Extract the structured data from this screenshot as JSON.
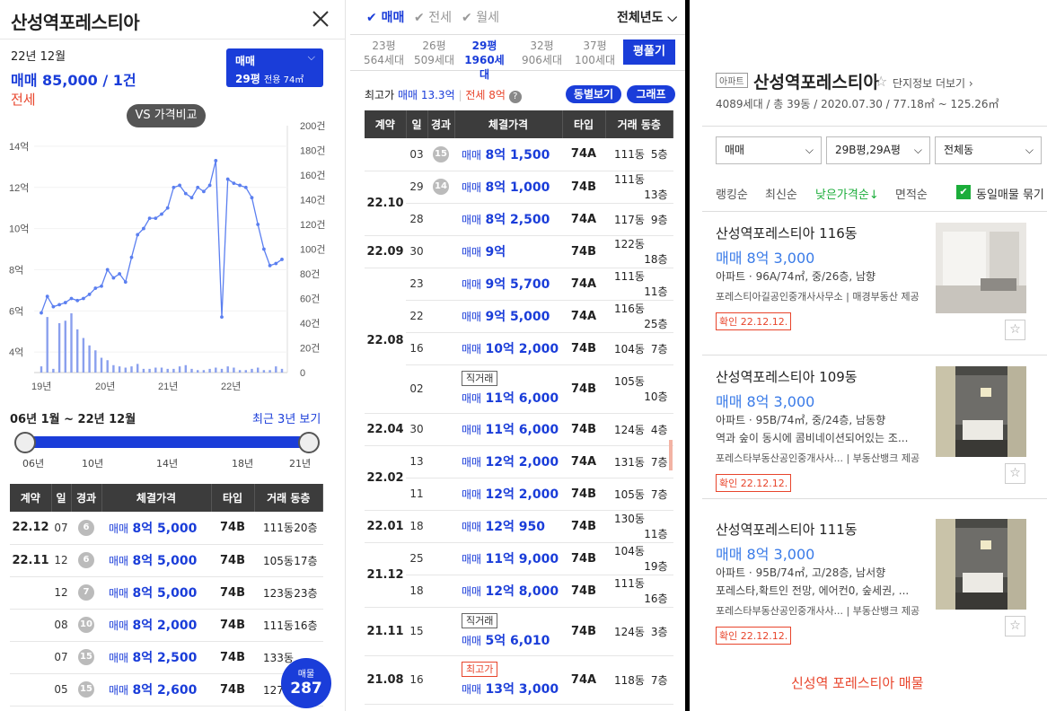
{
  "left": {
    "title": "산성역포레스티아",
    "summary": {
      "date": "22년 12월",
      "trade": "매매 85,000 / 1건",
      "jeonse": "전세"
    },
    "selector": {
      "type": "매매",
      "size": "29평",
      "area": "전용 74㎡"
    },
    "vs_button": "VS 가격비교",
    "period": "06년 1월 ~ 22년 12월",
    "recent_btn": "최근 3년 보기",
    "slider_years": [
      "06년",
      "10년",
      "14년",
      "18년",
      "21년"
    ],
    "headers": [
      "계약",
      "일",
      "경과",
      "체결가격",
      "타입",
      "거래 동층"
    ],
    "rows": [
      {
        "month": "22.12",
        "day": "07",
        "days": "6",
        "price": "매매 8억 5,000",
        "type": "74B",
        "dong": "111동",
        "floor": "20층"
      },
      {
        "month": "22.11",
        "day": "12",
        "days": "6",
        "price": "매매 8억 5,000",
        "type": "74B",
        "dong": "105동",
        "floor": "17층"
      },
      {
        "month": "",
        "day": "12",
        "days": "7",
        "price": "매매 8억 5,000",
        "type": "74B",
        "dong": "123동",
        "floor": "23층"
      },
      {
        "month": "",
        "day": "08",
        "days": "10",
        "price": "매매 8억 2,000",
        "type": "74B",
        "dong": "111동",
        "floor": "16층"
      },
      {
        "month": "",
        "day": "07",
        "days": "15",
        "price": "매매 8억 2,500",
        "type": "74B",
        "dong": "133동",
        "floor": ""
      },
      {
        "month": "",
        "day": "05",
        "days": "15",
        "price": "매매 8억 2,600",
        "type": "74B",
        "dong": "127동",
        "floor": ""
      }
    ],
    "fab": {
      "label": "매물",
      "count": "287"
    }
  },
  "chart_data": {
    "type": "line",
    "x_ticks": [
      "19년",
      "20년",
      "21년",
      "22년"
    ],
    "y_left_ticks": [
      "14억",
      "12억",
      "10억",
      "8억",
      "6억",
      "4억"
    ],
    "y_right_ticks": [
      "200건",
      "180건",
      "160건",
      "140건",
      "120건",
      "100건",
      "80건",
      "60건",
      "40건",
      "20건",
      "0"
    ],
    "ylim_price": [
      3,
      15
    ],
    "ylim_volume": [
      0,
      200
    ],
    "series": [
      {
        "values": [
          5.9,
          6.7,
          6.2,
          6.3,
          6.4,
          6.6,
          6.5,
          6.6,
          6.8,
          7.1,
          7.2,
          8.0,
          7.6,
          7.8,
          7.4,
          8.6,
          9.7,
          10.0,
          10.5,
          10.5,
          10.7,
          11.0,
          12.0,
          12.1,
          11.7,
          11.5,
          12.0,
          11.8,
          12.1,
          13.3,
          5.7,
          12.4,
          12.2,
          12.1,
          12.0,
          11.5,
          10.2,
          9.0,
          8.2,
          8.3,
          8.5
        ]
      }
    ],
    "volume": [
      5,
      45,
      3,
      40,
      42,
      48,
      35,
      28,
      22,
      18,
      12,
      10,
      6,
      5,
      4,
      5,
      7,
      3,
      3,
      4,
      4,
      3,
      3,
      5,
      6,
      3,
      2,
      2,
      3,
      4,
      3,
      5,
      4,
      2,
      2,
      3,
      4,
      2,
      2,
      5,
      3
    ]
  },
  "mid": {
    "tabs": [
      {
        "label": "매매",
        "active": true
      },
      {
        "label": "전세",
        "active": false
      },
      {
        "label": "월세",
        "active": false
      }
    ],
    "year_select": "전체년도",
    "sizes": [
      {
        "py": "23평",
        "units": "564세대",
        "active": false
      },
      {
        "py": "26평",
        "units": "509세대",
        "active": false
      },
      {
        "py": "29평",
        "units": "1960세대",
        "active": true
      },
      {
        "py": "32평",
        "units": "906세대",
        "active": false
      },
      {
        "py": "37평",
        "units": "100세대",
        "active": false
      }
    ],
    "size_btn": "평풀기",
    "highest_label": "최고가",
    "highest_trade": "매매 13.3억",
    "highest_jeonse": "전세 8억",
    "btn_dong": "동별보기",
    "btn_graph": "그래프",
    "headers": [
      "계약",
      "일",
      "경과",
      "체결가격",
      "타입",
      "거래 동층"
    ],
    "rows": [
      {
        "month": "",
        "day": "03",
        "days": "15",
        "tag": "",
        "price": "매매 8억 1,500",
        "type": "74A",
        "dong": "111동",
        "floor": "5층"
      },
      {
        "month": "22.10",
        "day": "29",
        "days": "14",
        "tag": "",
        "price": "매매 8억 1,000",
        "type": "74B",
        "dong": "111동",
        "floor": "13층"
      },
      {
        "month": "",
        "day": "28",
        "days": "",
        "tag": "",
        "price": "매매 8억 2,500",
        "type": "74A",
        "dong": "117동",
        "floor": "9층"
      },
      {
        "month": "22.09",
        "day": "30",
        "days": "",
        "tag": "",
        "price": "매매 9억",
        "type": "74B",
        "dong": "122동",
        "floor": "18층"
      },
      {
        "month": "22.08",
        "day": "23",
        "days": "",
        "tag": "",
        "price": "매매 9억 5,700",
        "type": "74A",
        "dong": "111동",
        "floor": "11층"
      },
      {
        "month": "",
        "day": "22",
        "days": "",
        "tag": "",
        "price": "매매 9억 5,000",
        "type": "74A",
        "dong": "116동",
        "floor": "25층"
      },
      {
        "month": "",
        "day": "16",
        "days": "",
        "tag": "",
        "price": "매매 10억 2,000",
        "type": "74B",
        "dong": "104동",
        "floor": "7층"
      },
      {
        "month": "",
        "day": "02",
        "days": "",
        "tag": "직거래",
        "price": "매매 11억 6,000",
        "type": "74B",
        "dong": "105동",
        "floor": "10층"
      },
      {
        "month": "22.04",
        "day": "30",
        "days": "",
        "tag": "",
        "price": "매매 11억 6,000",
        "type": "74B",
        "dong": "124동",
        "floor": "4층"
      },
      {
        "month": "22.02",
        "day": "13",
        "days": "",
        "tag": "",
        "price": "매매 12억 2,000",
        "type": "74A",
        "dong": "131동",
        "floor": "7층"
      },
      {
        "month": "",
        "day": "11",
        "days": "",
        "tag": "",
        "price": "매매 12억 2,000",
        "type": "74B",
        "dong": "105동",
        "floor": "7층"
      },
      {
        "month": "22.01",
        "day": "18",
        "days": "",
        "tag": "",
        "price": "매매 12억 950",
        "type": "74B",
        "dong": "130동",
        "floor": "11층"
      },
      {
        "month": "21.12",
        "day": "25",
        "days": "",
        "tag": "",
        "price": "매매 11억 9,000",
        "type": "74B",
        "dong": "104동",
        "floor": "19층"
      },
      {
        "month": "",
        "day": "18",
        "days": "",
        "tag": "",
        "price": "매매 12억 8,000",
        "type": "74B",
        "dong": "111동",
        "floor": "16층"
      },
      {
        "month": "21.11",
        "day": "15",
        "days": "",
        "tag": "직거래",
        "price": "매매 5억 6,010",
        "type": "74B",
        "dong": "124동",
        "floor": "3층"
      },
      {
        "month": "21.08",
        "day": "16",
        "days": "",
        "tag": "최고가",
        "price": "매매 13억 3,000",
        "type": "74A",
        "dong": "118동",
        "floor": "7층"
      }
    ]
  },
  "right": {
    "apt_badge": "아파트",
    "name": "산성역포레스티아",
    "more_link": "단지정보 더보기",
    "info": "4089세대 / 총 39동 / 2020.07.30 / 77.18㎡ ~ 125.26㎡",
    "filters": [
      "매매",
      "29B평,29A평",
      "전체동"
    ],
    "sorts": [
      "랭킹순",
      "최신순",
      "낮은가격순",
      "면적순"
    ],
    "same_check": "동일매물 묶기",
    "listings": [
      {
        "title": "산성역포레스티아 116동",
        "price": "매매 8억 3,000",
        "desc": "아파트 · 96A/74㎡, 중/26층, 남향",
        "desc2": "",
        "broker": "포레스티아길공인중개사사무소 | 매경부동산 제공",
        "confirm": "확인 22.12.12."
      },
      {
        "title": "산성역포레스티아 109동",
        "price": "매매 8억 3,000",
        "desc": "아파트 · 95B/74㎡, 중/24층, 남동향",
        "desc2": "역과 숲이 동시에 콤비네이션되어있는 조...",
        "broker": "포레스타부동산공인중개사사... | 부동산뱅크 제공",
        "confirm": "확인 22.12.12."
      },
      {
        "title": "산성역포레스티아 111동",
        "price": "매매 8억 3,000",
        "desc": "아파트 · 95B/74㎡, 고/28층, 남서향",
        "desc2": "포레스타,확트인 전망, 에어컨0, 숲세권, ...",
        "broker": "포레스타부동산공인중개사사... | 부동산뱅크 제공",
        "confirm": "확인 22.12.12."
      }
    ],
    "footer": "신성역 포레스티아 매물"
  },
  "colors": {
    "accent": "#1a3dd9",
    "red": "#e8452c",
    "green": "#1bad3a"
  }
}
